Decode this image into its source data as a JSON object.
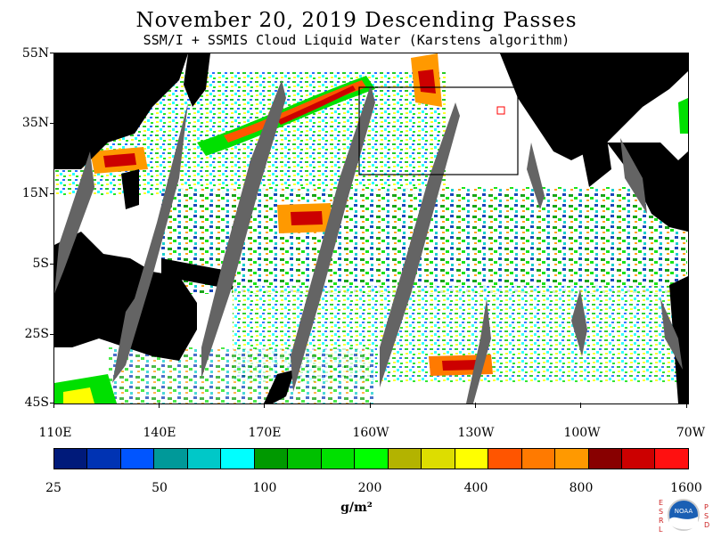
{
  "title": "November 20, 2019  Descending Passes",
  "subtitle": "SSM/I + SSMIS Cloud Liquid Water (Karstens algorithm)",
  "lat_labels": [
    "55N",
    "35N",
    "15N",
    "5S",
    "25S",
    "45S"
  ],
  "lon_labels": [
    "110E",
    "140E",
    "170E",
    "160W",
    "130W",
    "100W",
    "70W"
  ],
  "colorbar": {
    "colors": [
      "#001a7a",
      "#0033b3",
      "#0055ff",
      "#009999",
      "#00c8c8",
      "#00ffff",
      "#009900",
      "#00c000",
      "#00e000",
      "#00ff00",
      "#b3b300",
      "#dddd00",
      "#ffff00",
      "#ff5500",
      "#ff7a00",
      "#ff9900",
      "#880000",
      "#cc0000",
      "#ff1010"
    ],
    "tick_labels": [
      "25",
      "50",
      "100",
      "200",
      "400",
      "800",
      "1600"
    ],
    "units": "g/m²"
  },
  "logo": {
    "left_letters": [
      "E",
      "S",
      "R",
      "L"
    ],
    "right_letters": [
      "P",
      "S",
      "D"
    ],
    "center_text": "NOAA"
  }
}
